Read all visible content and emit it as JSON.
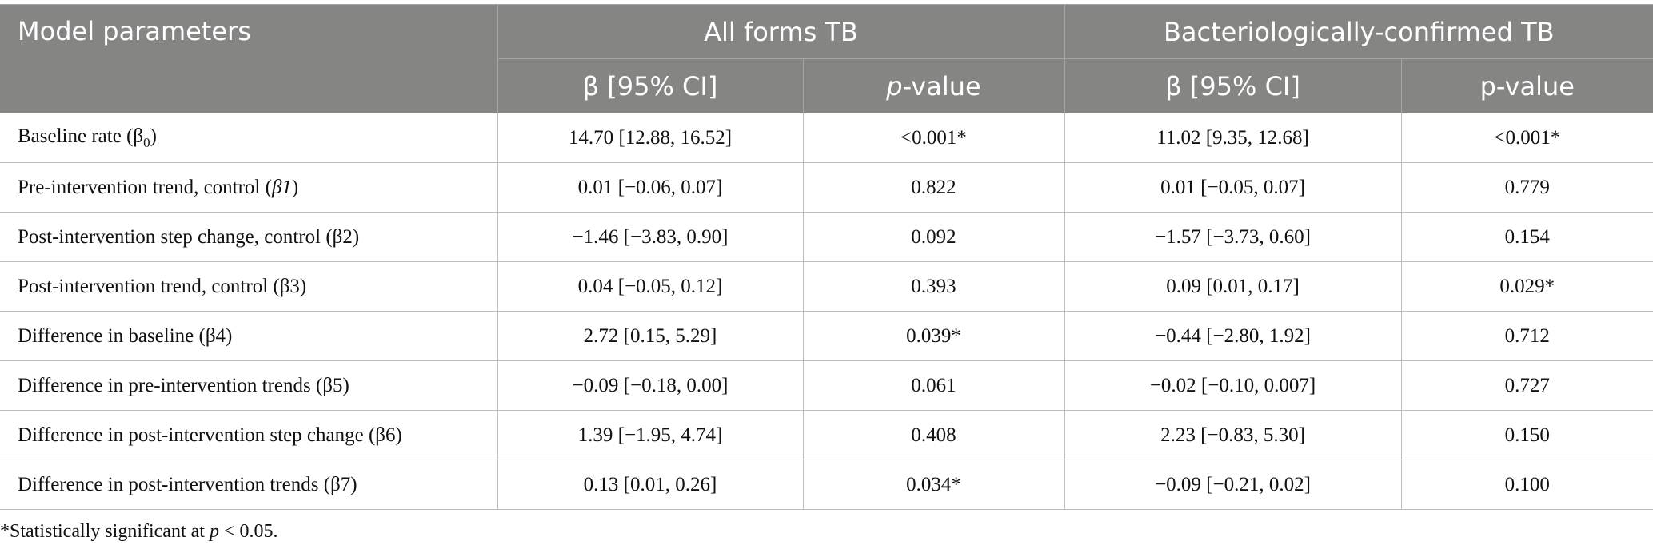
{
  "header": {
    "model_parameters": "Model parameters",
    "group_all_forms": "All forms TB",
    "group_bact_confirmed": "Bacteriologically-confirmed TB",
    "all_forms_beta": "β [95% CI]",
    "all_forms_p_italic": "p",
    "all_forms_p_rest": "-value",
    "bact_beta": "β [95% CI]",
    "bact_p": "p-value"
  },
  "rows": [
    {
      "param_main": "Baseline rate (β",
      "param_sub": "0",
      "param_end": ")",
      "all_beta": "14.70 [12.88, 16.52]",
      "all_p": "<0.001*",
      "bact_beta": "11.02 [9.35, 12.68]",
      "bact_p": "<0.001*"
    },
    {
      "param_main": "Pre-intervention trend, control (",
      "param_italic": "β1",
      "param_end": ")",
      "all_beta": "0.01 [−0.06, 0.07]",
      "all_p": "0.822",
      "bact_beta": "0.01 [−0.05, 0.07]",
      "bact_p": "0.779"
    },
    {
      "param_main": "Post-intervention step change, control (β2)",
      "all_beta": "−1.46 [−3.83, 0.90]",
      "all_p": "0.092",
      "bact_beta": "−1.57 [−3.73, 0.60]",
      "bact_p": "0.154"
    },
    {
      "param_main": "Post-intervention trend, control (β3)",
      "all_beta": "0.04 [−0.05, 0.12]",
      "all_p": "0.393",
      "bact_beta": "0.09 [0.01, 0.17]",
      "bact_p": "0.029*"
    },
    {
      "param_main": "Difference in baseline (β4)",
      "all_beta": "2.72 [0.15, 5.29]",
      "all_p": "0.039*",
      "bact_beta": "−0.44 [−2.80, 1.92]",
      "bact_p": "0.712"
    },
    {
      "param_main": "Difference in pre-intervention trends (β5)",
      "all_beta": "−0.09 [−0.18, 0.00]",
      "all_p": "0.061",
      "bact_beta": "−0.02 [−0.10, 0.007]",
      "bact_p": "0.727"
    },
    {
      "param_main": "Difference in post-intervention step change (β6)",
      "all_beta": "1.39 [−1.95, 4.74]",
      "all_p": "0.408",
      "bact_beta": "2.23 [−0.83, 5.30]",
      "bact_p": "0.150"
    },
    {
      "param_main": "Difference in post-intervention trends (β7)",
      "all_beta": "0.13 [0.01, 0.26]",
      "all_p": "0.034*",
      "bact_beta": "−0.09 [−0.21, 0.02]",
      "bact_p": "0.100"
    }
  ],
  "footnote": {
    "prefix": "*Statistically significant at ",
    "italic": "p",
    "suffix": " < 0.05."
  },
  "colors": {
    "header_bg": "#858584",
    "header_text": "#ffffff",
    "grid": "#bdbdbd"
  }
}
